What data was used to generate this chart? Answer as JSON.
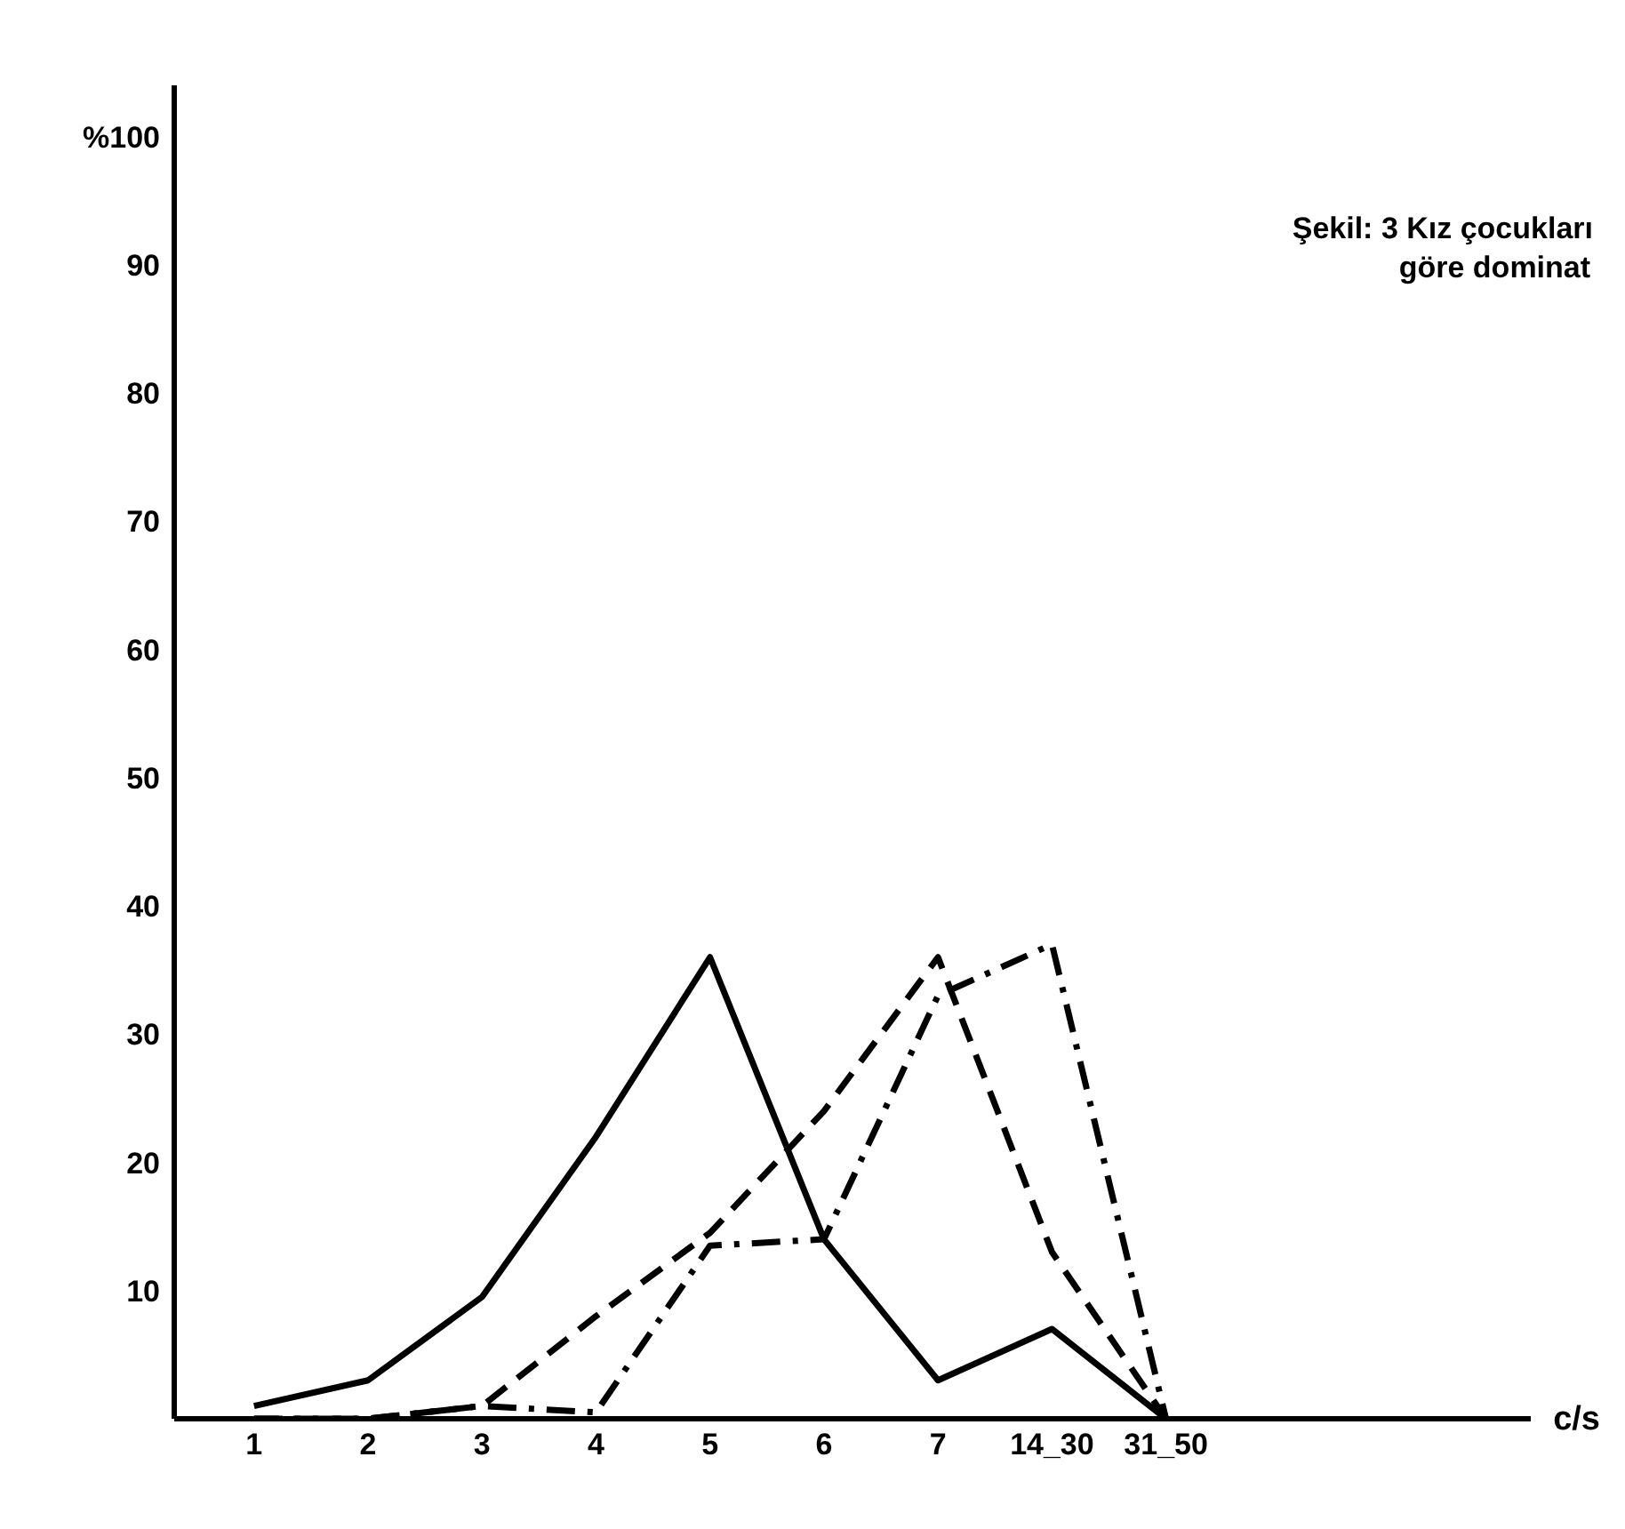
{
  "chart_data": {
    "type": "line",
    "title": "Şekil: 3 Kız çocukları",
    "subtitle": "göre dominat",
    "annotations": [
      "c/s"
    ],
    "categories": [
      "1",
      "2",
      "3",
      "4",
      "5",
      "6",
      "7",
      "14_30",
      "31_50"
    ],
    "series": [
      {
        "color": "#000000",
        "line_style": "solid",
        "values": [
          1,
          3,
          9.5,
          22,
          36,
          14,
          3,
          7,
          0
        ]
      },
      {
        "color": "#000000",
        "line_style": "dashed",
        "values": [
          0,
          0,
          1,
          8,
          14.5,
          24,
          36,
          13,
          0
        ]
      },
      {
        "color": "#000000",
        "line_style": "dashdot",
        "values": [
          0,
          0,
          1,
          0.5,
          13.5,
          14,
          33,
          37,
          0
        ]
      }
    ],
    "ylim": [
      0,
      104
    ],
    "yticks": [
      10,
      20,
      30,
      40,
      50,
      60,
      70,
      80,
      90,
      {
        "value": 100,
        "label": "%100"
      }
    ],
    "grid": false,
    "legend": false,
    "marker": "none"
  }
}
